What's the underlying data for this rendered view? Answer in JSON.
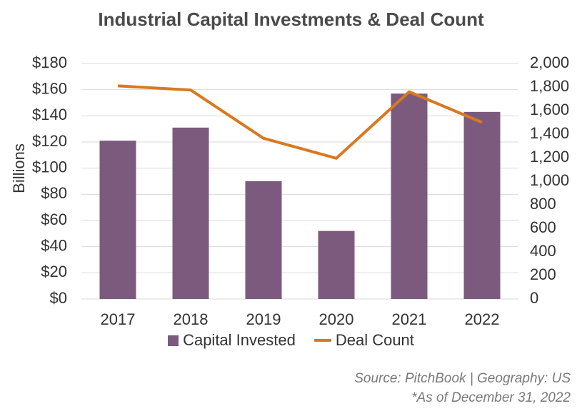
{
  "colors": {
    "bar": "#7b5a7d",
    "line": "#d9781f",
    "grid": "#d9d9d9",
    "text": "#333333"
  },
  "chart_data": {
    "type": "bar",
    "title": "Industrial Capital Investments & Deal Count",
    "categories": [
      "2017",
      "2018",
      "2019",
      "2020",
      "2021",
      "2022"
    ],
    "ylabel": "Billions",
    "ylim": [
      0,
      180
    ],
    "y_ticks": [
      "$0",
      "$20",
      "$40",
      "$60",
      "$80",
      "$100",
      "$120",
      "$140",
      "$160",
      "$180"
    ],
    "y2lim": [
      0,
      2000
    ],
    "y2_ticks": [
      "0",
      "200",
      "400",
      "600",
      "800",
      "1,000",
      "1,200",
      "1,400",
      "1,600",
      "1,800",
      "2,000"
    ],
    "grid": true,
    "legend_position": "bottom",
    "series": [
      {
        "name": "Capital Invested",
        "type": "bar",
        "axis": "left",
        "values": [
          121,
          131,
          90,
          52,
          157,
          143
        ]
      },
      {
        "name": "Deal Count",
        "type": "line",
        "axis": "right",
        "values": [
          1810,
          1775,
          1365,
          1195,
          1760,
          1500
        ]
      }
    ]
  },
  "footnotes": {
    "source": "Source: PitchBook | Geography: US",
    "as_of": "*As of December 31, 2022"
  }
}
